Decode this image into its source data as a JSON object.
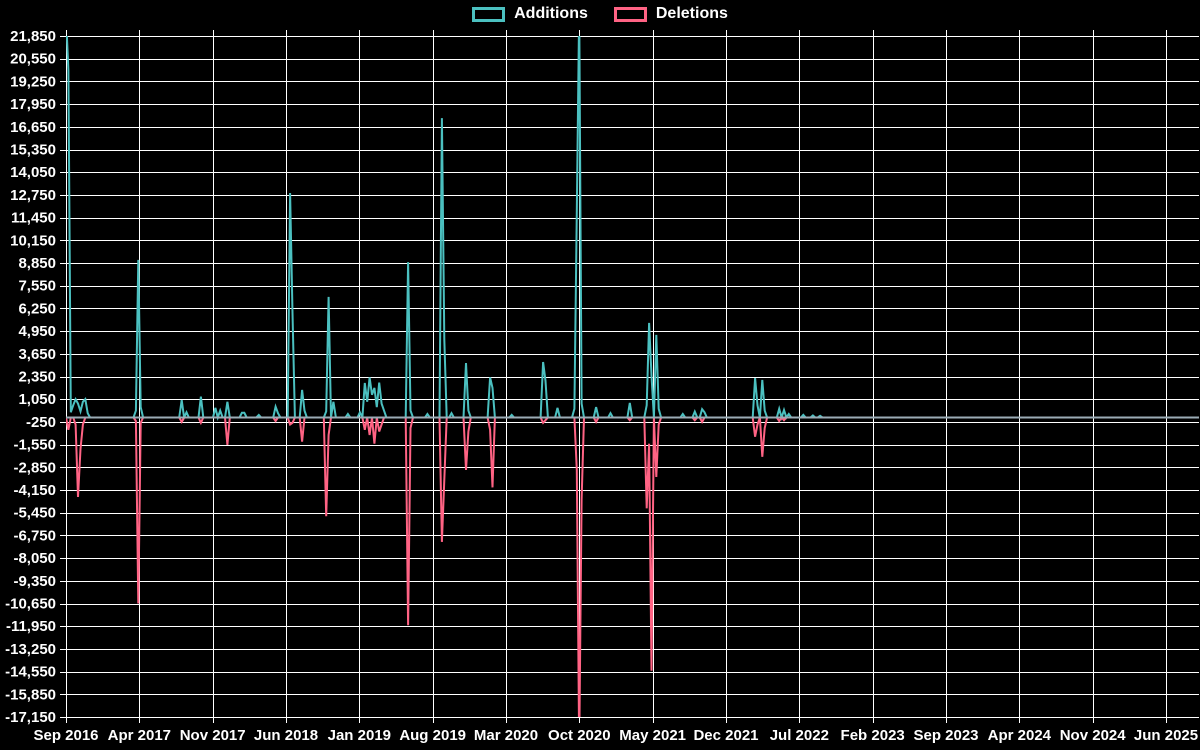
{
  "legend": {
    "items": [
      {
        "label": "Additions",
        "color": "#4bc0c0"
      },
      {
        "label": "Deletions",
        "color": "#ff6384"
      }
    ]
  },
  "colors": {
    "background": "#000000",
    "grid": "#ffffff",
    "text": "#ffffff",
    "additions": "#4bc0c0",
    "deletions": "#ff6384",
    "zero_baseline": "#9bacb6"
  },
  "chart_data": {
    "type": "line",
    "title": "",
    "xlabel": "",
    "ylabel": "",
    "grid": true,
    "legend_position": "top-center",
    "y_axis": {
      "max": 21850,
      "min": -17150,
      "tick_step": 1300
    },
    "x_axis": {
      "unit": "weeks",
      "start": "Sep 2016",
      "months_per_labeled_tick": 7,
      "tick_labels": [
        "Sep 2016",
        "Apr 2017",
        "Nov 2017",
        "Jun 2018",
        "Jan 2019",
        "Aug 2019",
        "Mar 2020",
        "Oct 2020",
        "May 2021",
        "Dec 2021",
        "Jul 2022",
        "Feb 2023",
        "Sep 2023",
        "Apr 2024",
        "Nov 2024",
        "Jun 2025"
      ]
    },
    "weeks_total": 470,
    "default_value": 0,
    "zero_baseline": 0,
    "series": [
      {
        "name": "Additions",
        "color": "#4bc0c0",
        "points": [
          [
            0,
            23000
          ],
          [
            1,
            19900
          ],
          [
            2,
            300
          ],
          [
            3,
            700
          ],
          [
            4,
            1050
          ],
          [
            5,
            800
          ],
          [
            6,
            350
          ],
          [
            7,
            900
          ],
          [
            8,
            1050
          ],
          [
            9,
            250
          ],
          [
            29,
            400
          ],
          [
            30,
            9030
          ],
          [
            31,
            600
          ],
          [
            48,
            1000
          ],
          [
            50,
            300
          ],
          [
            56,
            1200
          ],
          [
            62,
            550
          ],
          [
            64,
            400
          ],
          [
            67,
            900
          ],
          [
            73,
            270
          ],
          [
            74,
            270
          ],
          [
            80,
            150
          ],
          [
            87,
            620
          ],
          [
            88,
            250
          ],
          [
            93,
            12860
          ],
          [
            94,
            6000
          ],
          [
            98,
            1580
          ],
          [
            99,
            400
          ],
          [
            108,
            350
          ],
          [
            109,
            6910
          ],
          [
            111,
            900
          ],
          [
            117,
            200
          ],
          [
            122,
            300
          ],
          [
            124,
            1980
          ],
          [
            125,
            900
          ],
          [
            126,
            2300
          ],
          [
            127,
            1300
          ],
          [
            128,
            1700
          ],
          [
            129,
            600
          ],
          [
            130,
            2000
          ],
          [
            131,
            800
          ],
          [
            132,
            400
          ],
          [
            142,
            8900
          ],
          [
            143,
            400
          ],
          [
            150,
            200
          ],
          [
            156,
            17150
          ],
          [
            157,
            4500
          ],
          [
            160,
            250
          ],
          [
            166,
            3120
          ],
          [
            167,
            400
          ],
          [
            176,
            2300
          ],
          [
            177,
            1700
          ],
          [
            185,
            150
          ],
          [
            198,
            3180
          ],
          [
            199,
            2100
          ],
          [
            204,
            550
          ],
          [
            211,
            500
          ],
          [
            212,
            11800
          ],
          [
            213,
            23500
          ],
          [
            214,
            800
          ],
          [
            220,
            600
          ],
          [
            226,
            250
          ],
          [
            234,
            840
          ],
          [
            241,
            700
          ],
          [
            242,
            5420
          ],
          [
            243,
            2400
          ],
          [
            245,
            4730
          ],
          [
            246,
            500
          ],
          [
            256,
            200
          ],
          [
            261,
            340
          ],
          [
            264,
            480
          ],
          [
            265,
            300
          ],
          [
            286,
            2260
          ],
          [
            287,
            700
          ],
          [
            289,
            2150
          ],
          [
            290,
            400
          ],
          [
            296,
            500
          ],
          [
            298,
            430
          ],
          [
            300,
            200
          ],
          [
            306,
            150
          ],
          [
            310,
            120
          ],
          [
            313,
            100
          ]
        ]
      },
      {
        "name": "Deletions",
        "color": "#ff6384",
        "points": [
          [
            1,
            -700
          ],
          [
            4,
            -400
          ],
          [
            5,
            -4550
          ],
          [
            6,
            -1800
          ],
          [
            7,
            -400
          ],
          [
            29,
            -200
          ],
          [
            30,
            -10650
          ],
          [
            31,
            -300
          ],
          [
            48,
            -250
          ],
          [
            56,
            -300
          ],
          [
            67,
            -1570
          ],
          [
            87,
            -200
          ],
          [
            93,
            -400
          ],
          [
            94,
            -300
          ],
          [
            98,
            -1380
          ],
          [
            108,
            -5650
          ],
          [
            109,
            -1000
          ],
          [
            124,
            -700
          ],
          [
            126,
            -1000
          ],
          [
            128,
            -1500
          ],
          [
            130,
            -800
          ],
          [
            131,
            -400
          ],
          [
            142,
            -11900
          ],
          [
            143,
            -600
          ],
          [
            156,
            -7120
          ],
          [
            157,
            -3570
          ],
          [
            166,
            -3000
          ],
          [
            167,
            -800
          ],
          [
            176,
            -700
          ],
          [
            177,
            -4000
          ],
          [
            198,
            -300
          ],
          [
            199,
            -150
          ],
          [
            212,
            -3000
          ],
          [
            213,
            -19000
          ],
          [
            214,
            -4700
          ],
          [
            220,
            -250
          ],
          [
            234,
            -150
          ],
          [
            241,
            -5200
          ],
          [
            242,
            -1500
          ],
          [
            243,
            -14500
          ],
          [
            245,
            -3400
          ],
          [
            246,
            -400
          ],
          [
            261,
            -150
          ],
          [
            264,
            -250
          ],
          [
            286,
            -1100
          ],
          [
            287,
            -400
          ],
          [
            289,
            -2250
          ],
          [
            290,
            -600
          ],
          [
            296,
            -200
          ],
          [
            298,
            -150
          ]
        ]
      }
    ]
  }
}
